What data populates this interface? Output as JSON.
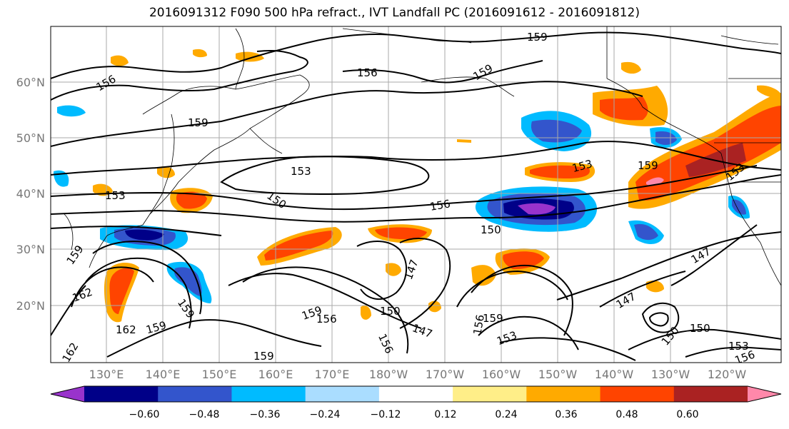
{
  "title": "2016091312 F090 500 hPa refract., IVT Landfall PC (2016091612 - 2016091812)",
  "map": {
    "lat_labels": [
      "60°N",
      "50°N",
      "40°N",
      "30°N",
      "20°N"
    ],
    "lon_labels": [
      "130°E",
      "140°E",
      "150°E",
      "160°E",
      "170°E",
      "180°W",
      "170°W",
      "160°W",
      "150°W",
      "140°W",
      "130°W",
      "120°W"
    ],
    "contour_labels": [
      "159",
      "156",
      "159",
      "156",
      "159",
      "153",
      "153",
      "150",
      "156",
      "150",
      "153",
      "159",
      "153",
      "159",
      "162",
      "159",
      "162",
      "159",
      "156",
      "150",
      "147",
      "147",
      "156",
      "159",
      "153",
      "147",
      "147",
      "150",
      "150",
      "153",
      "156",
      "159",
      "159",
      "162",
      "156"
    ]
  },
  "colorbar": {
    "colors": [
      "#9933cc",
      "#000088",
      "#3355cc",
      "#00bbff",
      "#aaddff",
      "#ffffff",
      "#ffee88",
      "#ffaa00",
      "#ff4400",
      "#aa2222",
      "#ff88aa"
    ],
    "tick_labels": [
      "−0.60",
      "−0.48",
      "−0.36",
      "−0.24",
      "−0.12",
      "0.12",
      "0.24",
      "0.36",
      "0.48",
      "0.60"
    ]
  }
}
